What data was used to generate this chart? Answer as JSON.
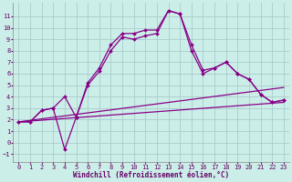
{
  "xlabel": "Windchill (Refroidissement éolien,°C)",
  "background_color": "#cceee8",
  "grid_color": "#aacccc",
  "line_color": "#880088",
  "x_ticks": [
    0,
    1,
    2,
    3,
    4,
    5,
    6,
    7,
    8,
    9,
    10,
    11,
    12,
    13,
    14,
    15,
    16,
    17,
    18,
    19,
    20,
    21,
    22,
    23
  ],
  "y_ticks": [
    -1,
    0,
    1,
    2,
    3,
    4,
    5,
    6,
    7,
    8,
    9,
    10,
    11
  ],
  "xlim": [
    -0.5,
    23.5
  ],
  "ylim": [
    -1.7,
    12.2
  ],
  "series": [
    {
      "x": [
        0,
        1,
        2,
        3,
        4,
        5,
        6,
        7,
        8,
        9,
        10,
        11,
        12,
        13,
        14,
        15,
        16,
        17,
        18,
        19,
        20,
        21,
        22,
        23
      ],
      "y": [
        1.8,
        1.8,
        2.8,
        3.0,
        4.0,
        2.2,
        5.2,
        6.5,
        8.5,
        9.5,
        9.5,
        9.8,
        9.8,
        11.5,
        11.2,
        8.5,
        6.3,
        6.5,
        7.0,
        6.0,
        5.5,
        4.2,
        3.5,
        3.7
      ],
      "marker": true
    },
    {
      "x": [
        0,
        1,
        2,
        3,
        4,
        5,
        6,
        7,
        8,
        9,
        10,
        11,
        12,
        13,
        14,
        15,
        16,
        17,
        18,
        19,
        20,
        21,
        22,
        23
      ],
      "y": [
        1.8,
        1.8,
        2.8,
        3.0,
        -0.6,
        2.2,
        5.0,
        6.2,
        8.0,
        9.2,
        9.0,
        9.3,
        9.5,
        11.5,
        11.2,
        8.0,
        6.0,
        6.5,
        7.0,
        6.0,
        5.5,
        4.2,
        3.5,
        3.7
      ],
      "marker": true
    },
    {
      "x": [
        0,
        23
      ],
      "y": [
        1.8,
        3.5
      ],
      "marker": false
    },
    {
      "x": [
        0,
        23
      ],
      "y": [
        1.8,
        4.8
      ],
      "marker": false
    }
  ],
  "tick_fontsize": 5,
  "xlabel_fontsize": 5.5,
  "marker_size": 2.0,
  "line_width": 0.9
}
